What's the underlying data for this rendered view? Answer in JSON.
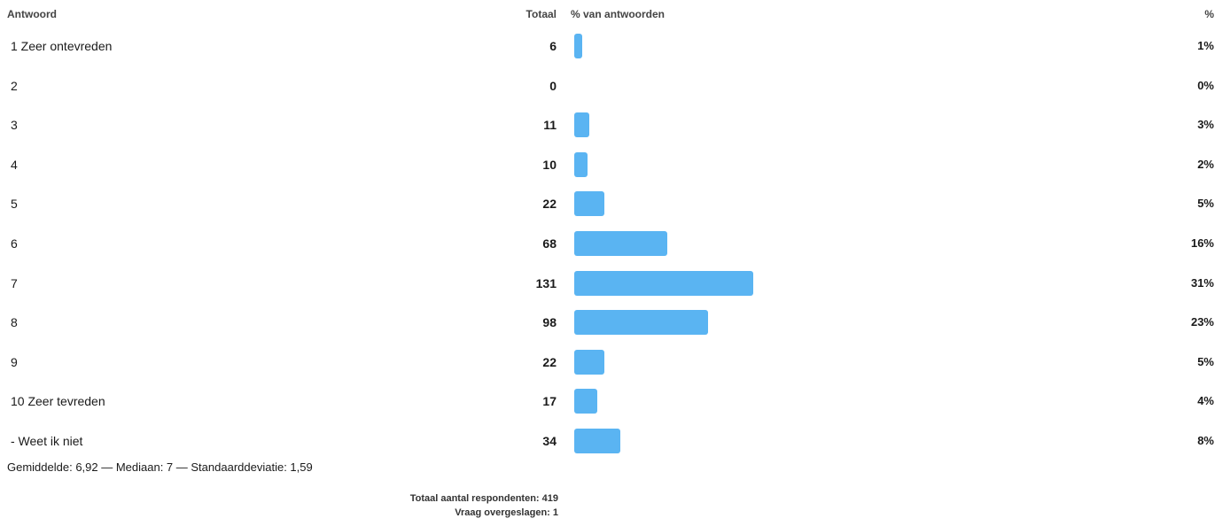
{
  "headers": {
    "answer": "Antwoord",
    "total": "Totaal",
    "percent_of_answers": "% van antwoorden",
    "percent": "%"
  },
  "chart_data": {
    "type": "bar",
    "orientation": "horizontal",
    "categories": [
      "1 Zeer ontevreden",
      "2",
      "3",
      "4",
      "5",
      "6",
      "7",
      "8",
      "9",
      "10 Zeer tevreden",
      "- Weet ik niet"
    ],
    "totals": [
      6,
      0,
      11,
      10,
      22,
      68,
      131,
      98,
      22,
      17,
      34
    ],
    "percent_labels": [
      "1%",
      "0%",
      "3%",
      "2%",
      "5%",
      "16%",
      "31%",
      "23%",
      "5%",
      "4%",
      "8%"
    ],
    "bar_color": "#5ab4f2"
  },
  "stats": "Gemiddelde: 6,92 — Mediaan: 7 — Standaarddeviatie: 1,59",
  "footer": {
    "respondents": "Totaal aantal respondenten: 419",
    "skipped": "Vraag overgeslagen: 1"
  }
}
